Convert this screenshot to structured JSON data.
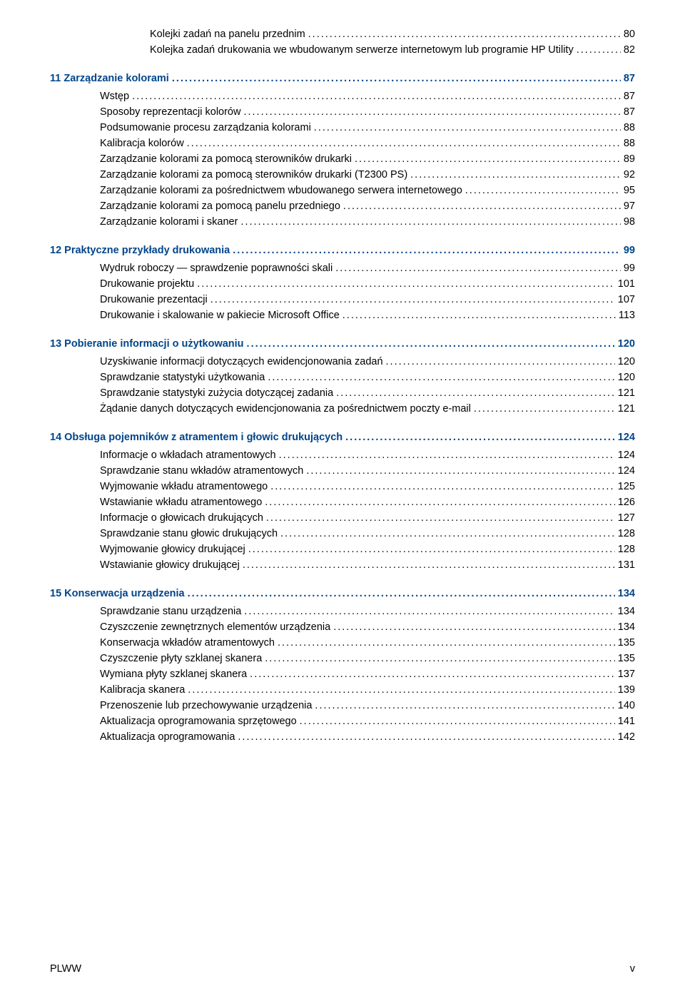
{
  "colors": {
    "heading": "#00458a",
    "text": "#000000",
    "background": "#ffffff"
  },
  "typography": {
    "font_family": "Arial",
    "body_fontsize_pt": 11,
    "heading_weight": "bold"
  },
  "orphan_subsubs": [
    {
      "label": "Kolejki zadań na panelu przednim",
      "page": "80"
    },
    {
      "label": "Kolejka zadań drukowania we wbudowanym serwerze internetowym lub programie HP Utility",
      "page": "82"
    }
  ],
  "sections": [
    {
      "num": "11",
      "title": "Zarządzanie kolorami",
      "page": "87",
      "subs": [
        {
          "label": "Wstęp",
          "page": "87"
        },
        {
          "label": "Sposoby reprezentacji kolorów",
          "page": "87"
        },
        {
          "label": "Podsumowanie procesu zarządzania kolorami",
          "page": "88"
        },
        {
          "label": "Kalibracja kolorów",
          "page": "88"
        },
        {
          "label": "Zarządzanie kolorami za pomocą sterowników drukarki",
          "page": "89"
        },
        {
          "label": "Zarządzanie kolorami za pomocą sterowników drukarki (T2300 PS)",
          "page": "92"
        },
        {
          "label": "Zarządzanie kolorami za pośrednictwem wbudowanego serwera internetowego",
          "page": "95"
        },
        {
          "label": "Zarządzanie kolorami za pomocą panelu przedniego",
          "page": "97"
        },
        {
          "label": "Zarządzanie kolorami i skaner",
          "page": "98"
        }
      ]
    },
    {
      "num": "12",
      "title": "Praktyczne przykłady drukowania",
      "page": "99",
      "subs": [
        {
          "label": "Wydruk roboczy — sprawdzenie poprawności skali",
          "page": "99"
        },
        {
          "label": "Drukowanie projektu",
          "page": "101"
        },
        {
          "label": "Drukowanie prezentacji",
          "page": "107"
        },
        {
          "label": "Drukowanie i skalowanie w pakiecie Microsoft Office",
          "page": "113"
        }
      ]
    },
    {
      "num": "13",
      "title": "Pobieranie informacji o użytkowaniu",
      "page": "120",
      "subs": [
        {
          "label": "Uzyskiwanie informacji dotyczących ewidencjonowania zadań",
          "page": "120"
        },
        {
          "label": "Sprawdzanie statystyki użytkowania",
          "page": "120"
        },
        {
          "label": "Sprawdzanie statystyki zużycia dotyczącej zadania",
          "page": "121"
        },
        {
          "label": "Żądanie danych dotyczących ewidencjonowania za pośrednictwem poczty e-mail",
          "page": "121"
        }
      ]
    },
    {
      "num": "14",
      "title": "Obsługa pojemników z atramentem i głowic drukujących",
      "page": "124",
      "subs": [
        {
          "label": "Informacje o wkładach atramentowych",
          "page": "124"
        },
        {
          "label": "Sprawdzanie stanu wkładów atramentowych",
          "page": "124"
        },
        {
          "label": "Wyjmowanie wkładu atramentowego",
          "page": "125"
        },
        {
          "label": "Wstawianie wkładu atramentowego",
          "page": "126"
        },
        {
          "label": "Informacje o głowicach drukujących",
          "page": "127"
        },
        {
          "label": "Sprawdzanie stanu głowic drukujących",
          "page": "128"
        },
        {
          "label": "Wyjmowanie głowicy drukującej",
          "page": "128"
        },
        {
          "label": "Wstawianie głowicy drukującej",
          "page": "131"
        }
      ]
    },
    {
      "num": "15",
      "title": "Konserwacja urządzenia",
      "page": "134",
      "subs": [
        {
          "label": "Sprawdzanie stanu urządzenia",
          "page": "134"
        },
        {
          "label": "Czyszczenie zewnętrznych elementów urządzenia",
          "page": "134"
        },
        {
          "label": "Konserwacja wkładów atramentowych",
          "page": "135"
        },
        {
          "label": "Czyszczenie płyty szklanej skanera",
          "page": "135"
        },
        {
          "label": "Wymiana płyty szklanej skanera",
          "page": "137"
        },
        {
          "label": "Kalibracja skanera",
          "page": "139"
        },
        {
          "label": "Przenoszenie lub przechowywanie urządzenia",
          "page": "140"
        },
        {
          "label": "Aktualizacja oprogramowania sprzętowego",
          "page": "141"
        },
        {
          "label": "Aktualizacja oprogramowania",
          "page": "142"
        }
      ]
    }
  ],
  "footer": {
    "left": "PLWW",
    "right": "v"
  }
}
